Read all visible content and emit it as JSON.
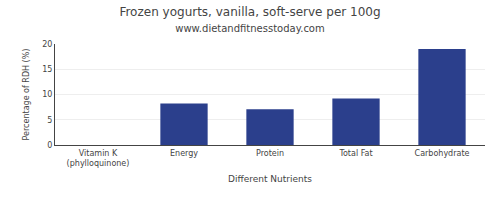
{
  "chart_data": {
    "type": "bar",
    "title": "Frozen yogurts, vanilla, soft-serve per 100g",
    "subtitle": "www.dietandfitnesstoday.com",
    "categories": [
      "Vitamin K (phylloquinone)",
      "Energy",
      "Protein",
      "Total Fat",
      "Carbohydrate"
    ],
    "values": [
      0,
      8.2,
      7.1,
      9.2,
      19.0
    ],
    "color": "#2b3f8c",
    "xlabel": "Different Nutrients",
    "ylabel": "Percentage of RDH (%)",
    "ylim": [
      0,
      20
    ],
    "yticks": [
      0,
      5,
      10,
      15,
      20
    ],
    "grid": true
  }
}
